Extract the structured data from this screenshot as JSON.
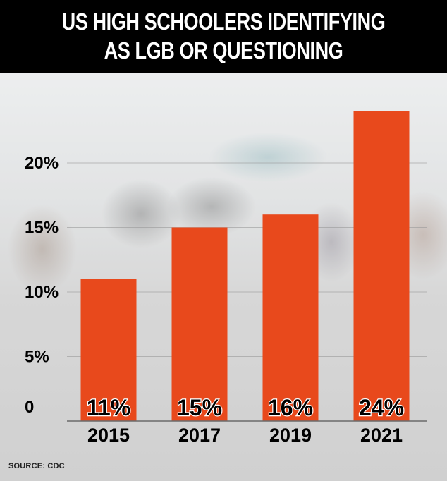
{
  "title": {
    "line1": "US HIGH SCHOOLERS IDENTIFYING",
    "line2": "AS LGB OR QUESTIONING"
  },
  "source": "SOURCE: CDC",
  "colors": {
    "bar": "#e8491c",
    "title_background": "#000000",
    "title_text": "#ffffff",
    "gridline": "#9a9a9a"
  },
  "chart_data": {
    "type": "bar",
    "title": "US HIGH SCHOOLERS IDENTIFYING AS LGB OR QUESTIONING",
    "categories": [
      "2015",
      "2017",
      "2019",
      "2021"
    ],
    "values": [
      11,
      15,
      16,
      24
    ],
    "data_labels": [
      "11%",
      "15%",
      "16%",
      "24%"
    ],
    "yticks": [
      0,
      5,
      10,
      15,
      20
    ],
    "ytick_labels": [
      "0",
      "5%",
      "10%",
      "15%",
      "20%"
    ],
    "ylim": [
      0,
      25
    ],
    "xlabel": "",
    "ylabel": "",
    "grid": true,
    "legend": "none"
  }
}
